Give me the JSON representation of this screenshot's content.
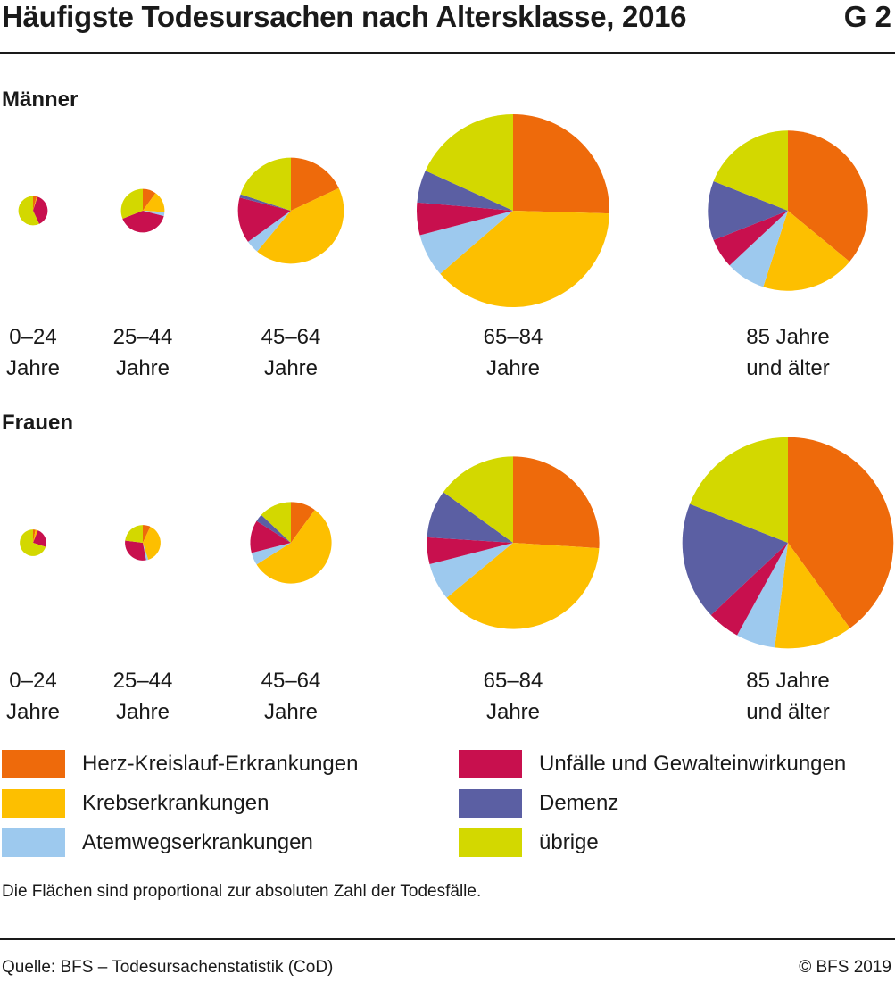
{
  "header": {
    "title": "Häufigste Todesursachen nach Altersklasse, 2016",
    "graphic_id": "G 2"
  },
  "colors": {
    "herz": "#ee6a0b",
    "krebs": "#fdbf00",
    "atemweg": "#9dc9ee",
    "unfaelle": "#c8104e",
    "demenz": "#5b5fa3",
    "uebrige": "#d3d800"
  },
  "chart_data": {
    "type": "pie",
    "note": "Die Flächen sind proportional zur absoluten Zahl der Todesfälle.",
    "slice_order": [
      "Herz-Kreislauf-Erkrankungen",
      "Krebserkrankungen",
      "Atemwegserkrankungen",
      "Unfälle und Gewalteinwirkungen",
      "Demenz",
      "übrige"
    ],
    "groups": [
      {
        "name": "Männer",
        "pies": [
          {
            "age_line1": "0–24",
            "age_line2": "Jahre",
            "relative_area": 0.023,
            "shares": [
              4,
              1,
              0,
              38,
              0,
              57
            ]
          },
          {
            "age_line1": "25–44",
            "age_line2": "Jahre",
            "relative_area": 0.051,
            "shares": [
              10,
              16,
              3,
              40,
              0,
              31
            ]
          },
          {
            "age_line1": "45–64",
            "age_line2": "Jahre",
            "relative_area": 0.302,
            "shares": [
              18,
              43,
              4,
              14,
              1,
              20
            ]
          },
          {
            "age_line1": "65–84",
            "age_line2": "Jahre",
            "relative_area": 1.0,
            "shares": [
              28,
              42,
              8,
              6,
              6,
              20
            ]
          },
          {
            "age_line1": "85 Jahre",
            "age_line2": "und älter",
            "relative_area": 0.69,
            "shares": [
              36,
              19,
              8,
              6,
              12,
              19
            ]
          }
        ]
      },
      {
        "name": "Frauen",
        "pies": [
          {
            "age_line1": "0–24",
            "age_line2": "Jahre",
            "relative_area": 0.019,
            "shares": [
              3,
              3,
              0,
              24,
              0,
              70
            ]
          },
          {
            "age_line1": "25–44",
            "age_line2": "Jahre",
            "relative_area": 0.034,
            "shares": [
              7,
              38,
              2,
              30,
              0,
              23
            ]
          },
          {
            "age_line1": "45–64",
            "age_line2": "Jahre",
            "relative_area": 0.178,
            "shares": [
              10,
              56,
              5,
              13,
              3,
              13
            ]
          },
          {
            "age_line1": "65–84",
            "age_line2": "Jahre",
            "relative_area": 0.8,
            "shares": [
              26,
              38,
              7,
              5,
              9,
              15
            ]
          },
          {
            "age_line1": "85 Jahre",
            "age_line2": "und älter",
            "relative_area": 1.2,
            "shares": [
              40,
              12,
              6,
              5,
              18,
              19
            ]
          }
        ]
      }
    ]
  },
  "legend": [
    {
      "label": "Herz-Kreislauf-Erkrankungen",
      "color": "#ee6a0b"
    },
    {
      "label": "Krebserkrankungen",
      "color": "#fdbf00"
    },
    {
      "label": "Atemwegserkrankungen",
      "color": "#9dc9ee"
    },
    {
      "label": "Unfälle und Gewalteinwirkungen",
      "color": "#c8104e"
    },
    {
      "label": "Demenz",
      "color": "#5b5fa3"
    },
    {
      "label": "übrige",
      "color": "#d3d800"
    }
  ],
  "footer": {
    "source": "Quelle: BFS – Todesursachenstatistik (CoD)",
    "copyright": "© BFS 2019"
  }
}
